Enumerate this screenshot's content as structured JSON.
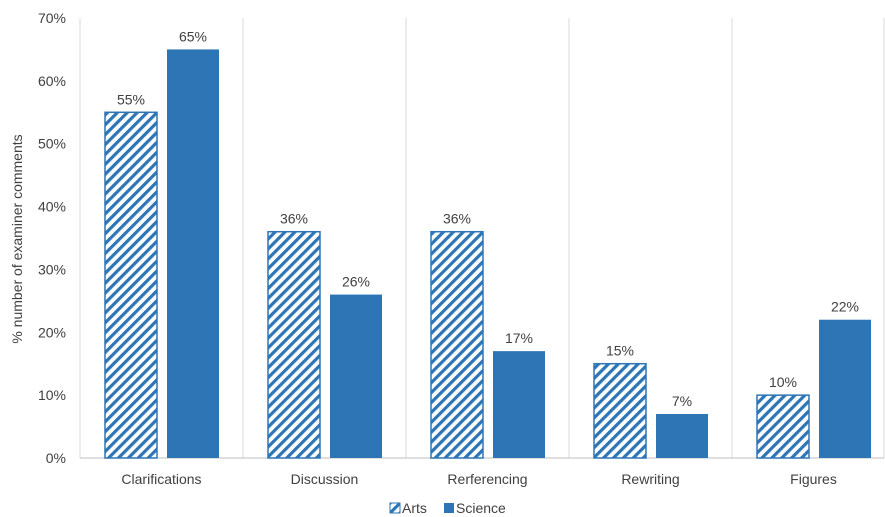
{
  "chart_data": {
    "type": "bar",
    "title": "",
    "xlabel": "",
    "ylabel": "% number of examiner comments",
    "categories": [
      "Clarifications",
      "Discussion",
      "Rerferencing",
      "Rewriting",
      "Figures"
    ],
    "series": [
      {
        "name": "Arts",
        "values": [
          55,
          36,
          36,
          15,
          10
        ],
        "labels": [
          "55%",
          "36%",
          "36%",
          "15%",
          "10%"
        ],
        "color": "#2e75b6",
        "pattern": "diagonal-hatch"
      },
      {
        "name": "Science",
        "values": [
          65,
          26,
          17,
          7,
          22
        ],
        "labels": [
          "65%",
          "26%",
          "17%",
          "7%",
          "22%"
        ],
        "color": "#2e75b6",
        "pattern": "solid"
      }
    ],
    "ylim": [
      0,
      70
    ],
    "yticks": [
      "0%",
      "10%",
      "20%",
      "30%",
      "40%",
      "50%",
      "60%",
      "70%"
    ],
    "grid": "vertical category dividers",
    "legend_position": "bottom"
  }
}
